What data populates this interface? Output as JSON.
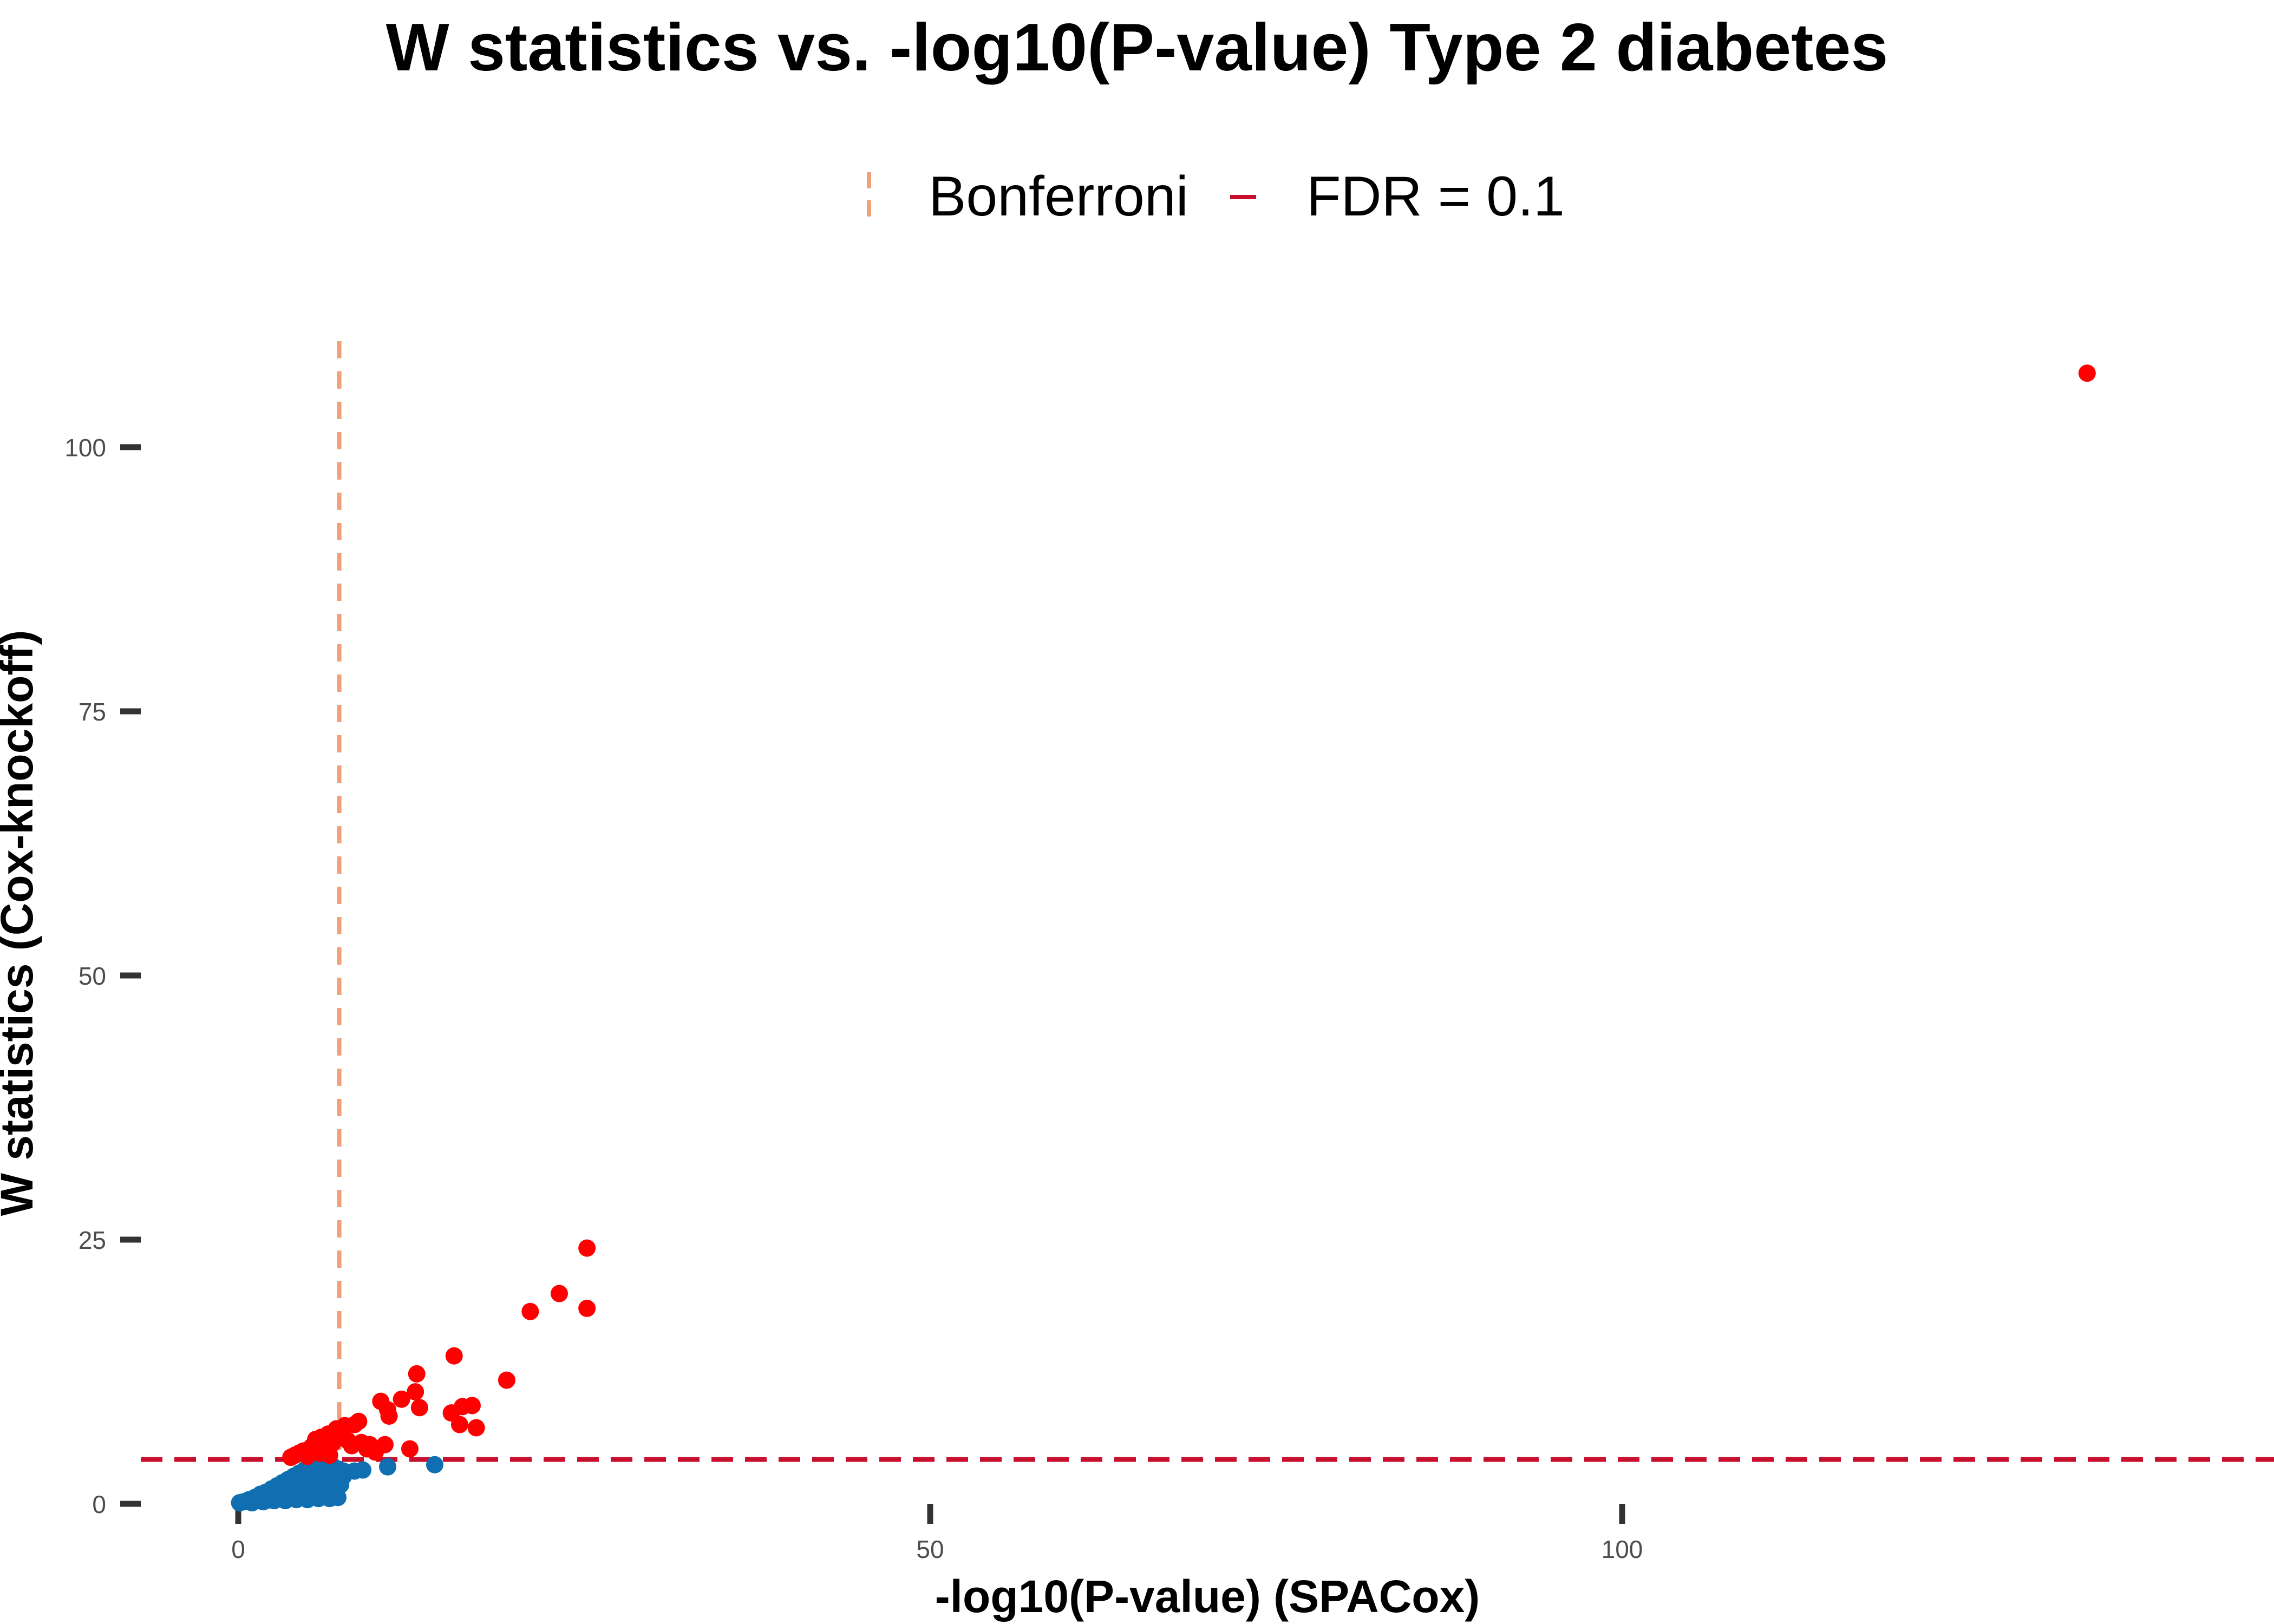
{
  "chart_data": {
    "type": "scatter",
    "title": "W statistics vs. -log10(P-value)  Type 2 diabetes",
    "xlabel": "-log10(P-value) (SPACox)",
    "ylabel": "W statistics (Cox-knockoff)",
    "xlim": [
      -5,
      147
    ],
    "ylim": [
      -2,
      111
    ],
    "x_ticks": [
      0,
      50,
      100
    ],
    "x_tick_labels": [
      "0",
      "50",
      "100"
    ],
    "y_ticks": [
      0,
      25,
      50,
      75,
      100
    ],
    "y_tick_labels": [
      "0",
      "25",
      "50",
      "75",
      "100"
    ],
    "grid": false,
    "legend_position": "top",
    "reference_lines": [
      {
        "name": "Bonferroni",
        "orientation": "vertical",
        "x": 7.3,
        "color": "#F0A07A",
        "style": "dashed"
      },
      {
        "name": "FDR = 0.1",
        "orientation": "horizontal",
        "y": 4.2,
        "color": "#C8102E",
        "style": "dashed"
      }
    ],
    "series": [
      {
        "color": "#FF0000",
        "points": [
          [
            133.6,
            107.0
          ],
          [
            25.2,
            24.2
          ],
          [
            23.2,
            19.9
          ],
          [
            21.1,
            18.2
          ],
          [
            25.2,
            18.5
          ],
          [
            19.4,
            11.7
          ],
          [
            15.6,
            14.0
          ],
          [
            12.9,
            12.3
          ],
          [
            12.8,
            10.6
          ],
          [
            13.1,
            9.1
          ],
          [
            11.8,
            9.9
          ],
          [
            10.3,
            9.7
          ],
          [
            10.8,
            8.9
          ],
          [
            10.9,
            8.3
          ],
          [
            15.4,
            8.6
          ],
          [
            16.2,
            9.2
          ],
          [
            16.9,
            9.3
          ],
          [
            16.0,
            7.5
          ],
          [
            17.2,
            7.2
          ],
          [
            10.6,
            5.6
          ],
          [
            9.9,
            4.9
          ],
          [
            12.4,
            5.2
          ],
          [
            8.7,
            7.8
          ],
          [
            8.4,
            7.5
          ],
          [
            7.7,
            7.4
          ],
          [
            7.1,
            7.1
          ],
          [
            6.5,
            6.6
          ],
          [
            6.0,
            6.3
          ],
          [
            5.6,
            6.1
          ],
          [
            5.3,
            5.4
          ],
          [
            4.7,
            5.0
          ],
          [
            4.4,
            4.8
          ],
          [
            4.1,
            4.6
          ],
          [
            3.8,
            4.4
          ],
          [
            6.8,
            5.7
          ],
          [
            7.9,
            6.0
          ],
          [
            8.9,
            5.8
          ],
          [
            9.3,
            5.2
          ],
          [
            6.2,
            5.2
          ],
          [
            5.0,
            4.5
          ],
          [
            7.3,
            6.3
          ],
          [
            8.2,
            5.5
          ],
          [
            5.9,
            4.8
          ],
          [
            6.6,
            4.6
          ],
          [
            9.5,
            5.6
          ]
        ]
      },
      {
        "color": "#0F6FB0",
        "points": [
          [
            0.1,
            0.1
          ],
          [
            0.4,
            0.2
          ],
          [
            0.8,
            0.4
          ],
          [
            1.2,
            0.6
          ],
          [
            1.6,
            0.9
          ],
          [
            2.0,
            1.1
          ],
          [
            2.4,
            1.4
          ],
          [
            2.8,
            1.7
          ],
          [
            3.2,
            2.0
          ],
          [
            3.6,
            2.3
          ],
          [
            4.0,
            2.6
          ],
          [
            4.4,
            2.9
          ],
          [
            4.8,
            3.2
          ],
          [
            5.2,
            3.5
          ],
          [
            5.6,
            3.7
          ],
          [
            6.0,
            3.9
          ],
          [
            6.4,
            4.0
          ],
          [
            6.8,
            3.6
          ],
          [
            7.2,
            3.3
          ],
          [
            7.6,
            3.1
          ],
          [
            1.0,
            0.1
          ],
          [
            1.8,
            0.2
          ],
          [
            2.6,
            0.3
          ],
          [
            3.4,
            0.3
          ],
          [
            4.2,
            0.4
          ],
          [
            5.0,
            0.4
          ],
          [
            5.8,
            0.5
          ],
          [
            6.6,
            0.5
          ],
          [
            7.2,
            0.6
          ],
          [
            1.4,
            0.3
          ],
          [
            2.2,
            0.6
          ],
          [
            3.0,
            0.9
          ],
          [
            3.8,
            1.2
          ],
          [
            4.6,
            1.5
          ],
          [
            5.4,
            1.8
          ],
          [
            6.2,
            2.1
          ],
          [
            7.0,
            2.4
          ],
          [
            2.0,
            0.3
          ],
          [
            3.0,
            0.5
          ],
          [
            4.0,
            0.8
          ],
          [
            5.0,
            1.2
          ],
          [
            6.0,
            1.6
          ],
          [
            7.0,
            2.0
          ],
          [
            4.6,
            2.2
          ],
          [
            5.4,
            2.6
          ],
          [
            6.2,
            3.0
          ],
          [
            7.0,
            3.2
          ],
          [
            7.4,
            1.8
          ],
          [
            7.6,
            2.6
          ],
          [
            8.4,
            3.1
          ],
          [
            9.0,
            3.2
          ],
          [
            10.8,
            3.5
          ],
          [
            14.2,
            3.7
          ],
          [
            3.4,
            1.6
          ],
          [
            4.2,
            1.9
          ]
        ]
      }
    ]
  }
}
